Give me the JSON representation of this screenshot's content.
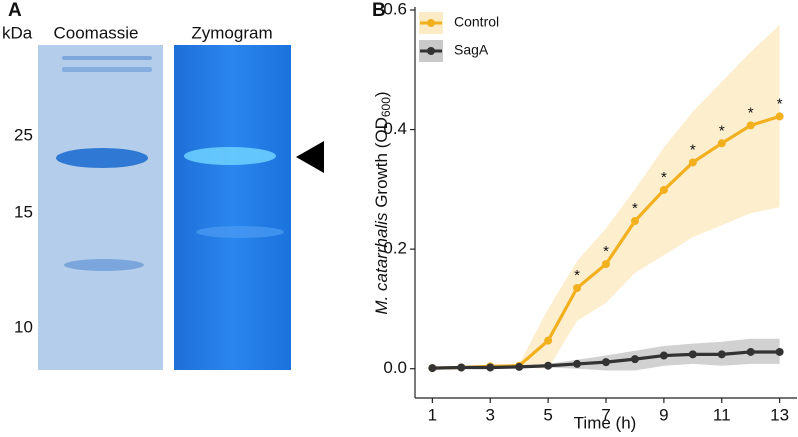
{
  "panel_a": {
    "label": "A",
    "unit": "kDa",
    "lanes": [
      "Coomassie",
      "Zymogram"
    ],
    "markers": [
      25,
      15,
      10
    ]
  },
  "chart_data": {
    "type": "line",
    "panel_label": "B",
    "x_label": "Time (h)",
    "y_label": {
      "italic": "M. catarrhalis",
      "text": " Growth (OD",
      "subscript": "600",
      "end": ")"
    },
    "x": [
      1,
      2,
      3,
      4,
      5,
      6,
      7,
      8,
      9,
      10,
      11,
      12,
      13
    ],
    "series": [
      {
        "name": "Control",
        "color": "#f2b01e",
        "band_color": "#fdebc6",
        "values": [
          0.001,
          0.002,
          0.004,
          0.005,
          0.047,
          0.135,
          0.175,
          0.247,
          0.299,
          0.345,
          0.377,
          0.407,
          0.422
        ],
        "upper": [
          0.002,
          0.003,
          0.006,
          0.008,
          0.1,
          0.18,
          0.235,
          0.3,
          0.37,
          0.43,
          0.48,
          0.53,
          0.575
        ],
        "lower": [
          0.0,
          0.001,
          0.002,
          0.002,
          0.0,
          0.08,
          0.11,
          0.16,
          0.19,
          0.22,
          0.24,
          0.26,
          0.27
        ]
      },
      {
        "name": "SagA",
        "color": "#333333",
        "band_color": "#c9c9c9",
        "values": [
          0.001,
          0.002,
          0.002,
          0.003,
          0.005,
          0.008,
          0.011,
          0.016,
          0.022,
          0.024,
          0.024,
          0.028,
          0.028
        ],
        "upper": [
          0.002,
          0.003,
          0.004,
          0.005,
          0.008,
          0.015,
          0.022,
          0.03,
          0.038,
          0.042,
          0.045,
          0.05,
          0.05
        ],
        "lower": [
          0.0,
          0.001,
          0.0,
          0.001,
          0.002,
          0.0,
          -0.003,
          -0.003,
          0.005,
          0.008,
          0.005,
          0.008,
          0.008
        ]
      }
    ],
    "annotations": [
      {
        "text": "*",
        "x": 6
      },
      {
        "text": "*",
        "x": 7
      },
      {
        "text": "*",
        "x": 8
      },
      {
        "text": "*",
        "x": 9
      },
      {
        "text": "*",
        "x": 10
      },
      {
        "text": "*",
        "x": 11
      },
      {
        "text": "*",
        "x": 12
      },
      {
        "text": "*",
        "x": 13
      }
    ],
    "xlim": [
      0.4,
      13.6
    ],
    "ylim": [
      -0.049,
      0.605
    ],
    "xticks": [
      1,
      3,
      5,
      7,
      9,
      11,
      13
    ],
    "yticks": [
      {
        "value": 0,
        "label": "0.0"
      },
      {
        "value": 0.2,
        "label": "0.2"
      },
      {
        "value": 0.4,
        "label": "0.4"
      },
      {
        "value": 0.6,
        "label": "0.6"
      }
    ],
    "legend": "top-left",
    "grid": false
  }
}
